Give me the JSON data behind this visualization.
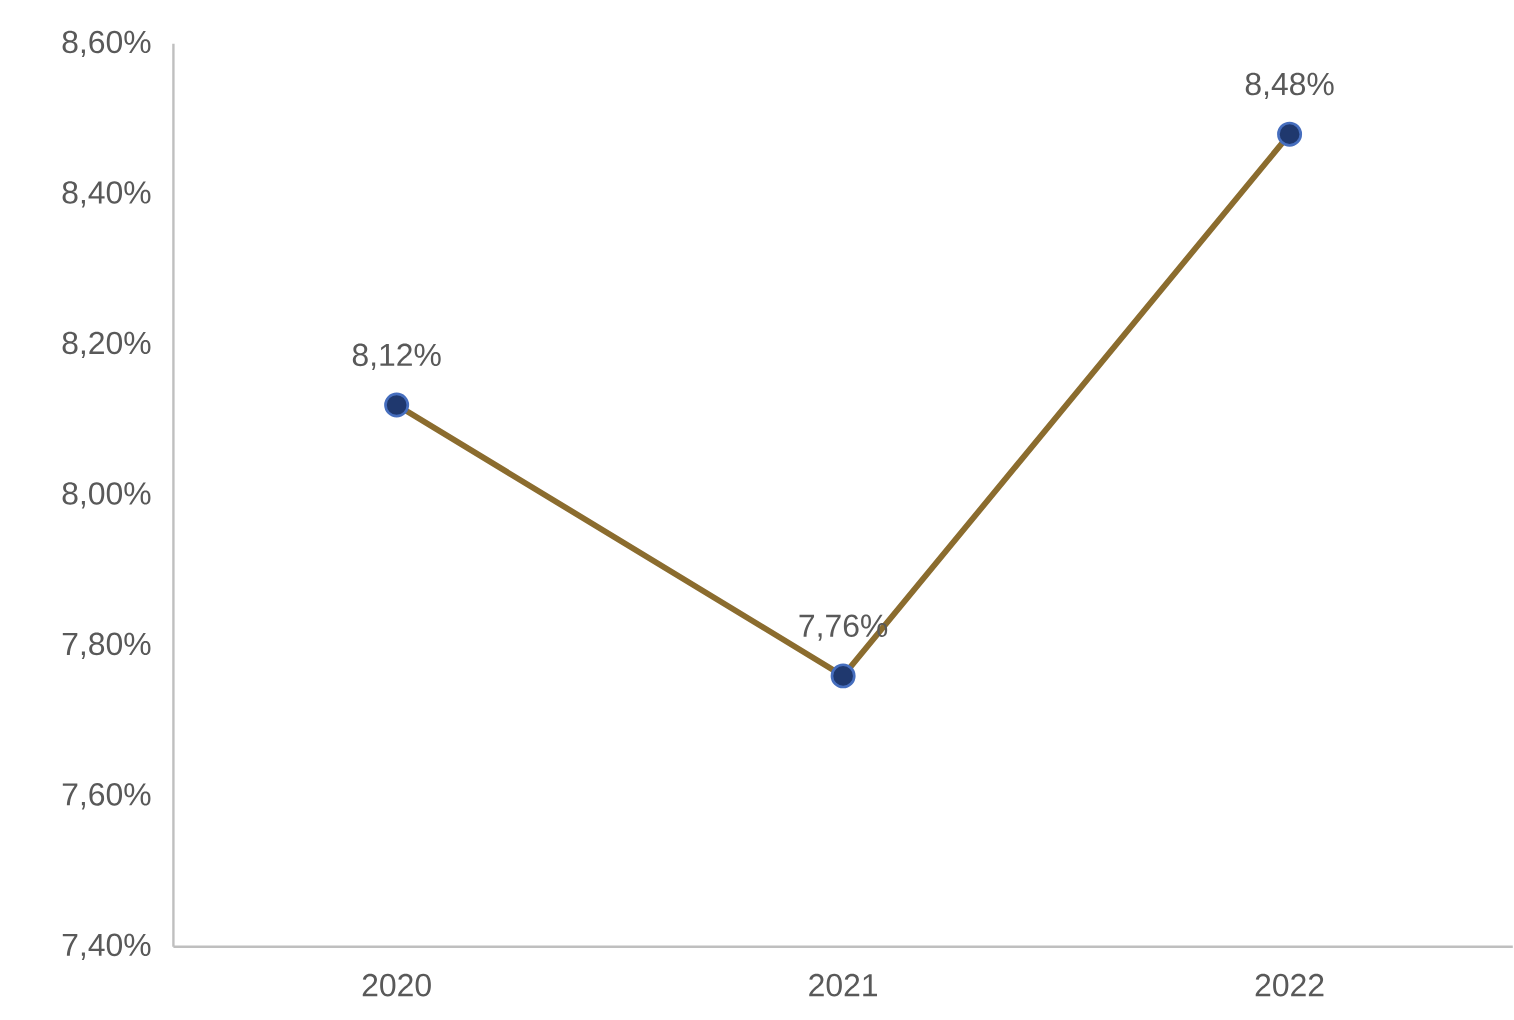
{
  "chart_data": {
    "type": "line",
    "categories": [
      "2020",
      "2021",
      "2022"
    ],
    "series": [
      {
        "color": "#8b6c2e",
        "values": [
          8.12,
          7.76,
          8.48
        ],
        "value_labels": [
          "8,12%",
          "7,76%",
          "8,48%"
        ]
      }
    ],
    "ylim": [
      7.4,
      8.6
    ],
    "yticks": [
      {
        "value": 7.4,
        "label": "7,40%"
      },
      {
        "value": 7.6,
        "label": "7,60%"
      },
      {
        "value": 7.8,
        "label": "7,80%"
      },
      {
        "value": 8.0,
        "label": "8,00%"
      },
      {
        "value": 8.2,
        "label": "8,20%"
      },
      {
        "value": 8.4,
        "label": "8,40%"
      },
      {
        "value": 8.6,
        "label": "8,60%"
      }
    ],
    "grid": false,
    "marker": "circle",
    "line_style": "solid"
  }
}
